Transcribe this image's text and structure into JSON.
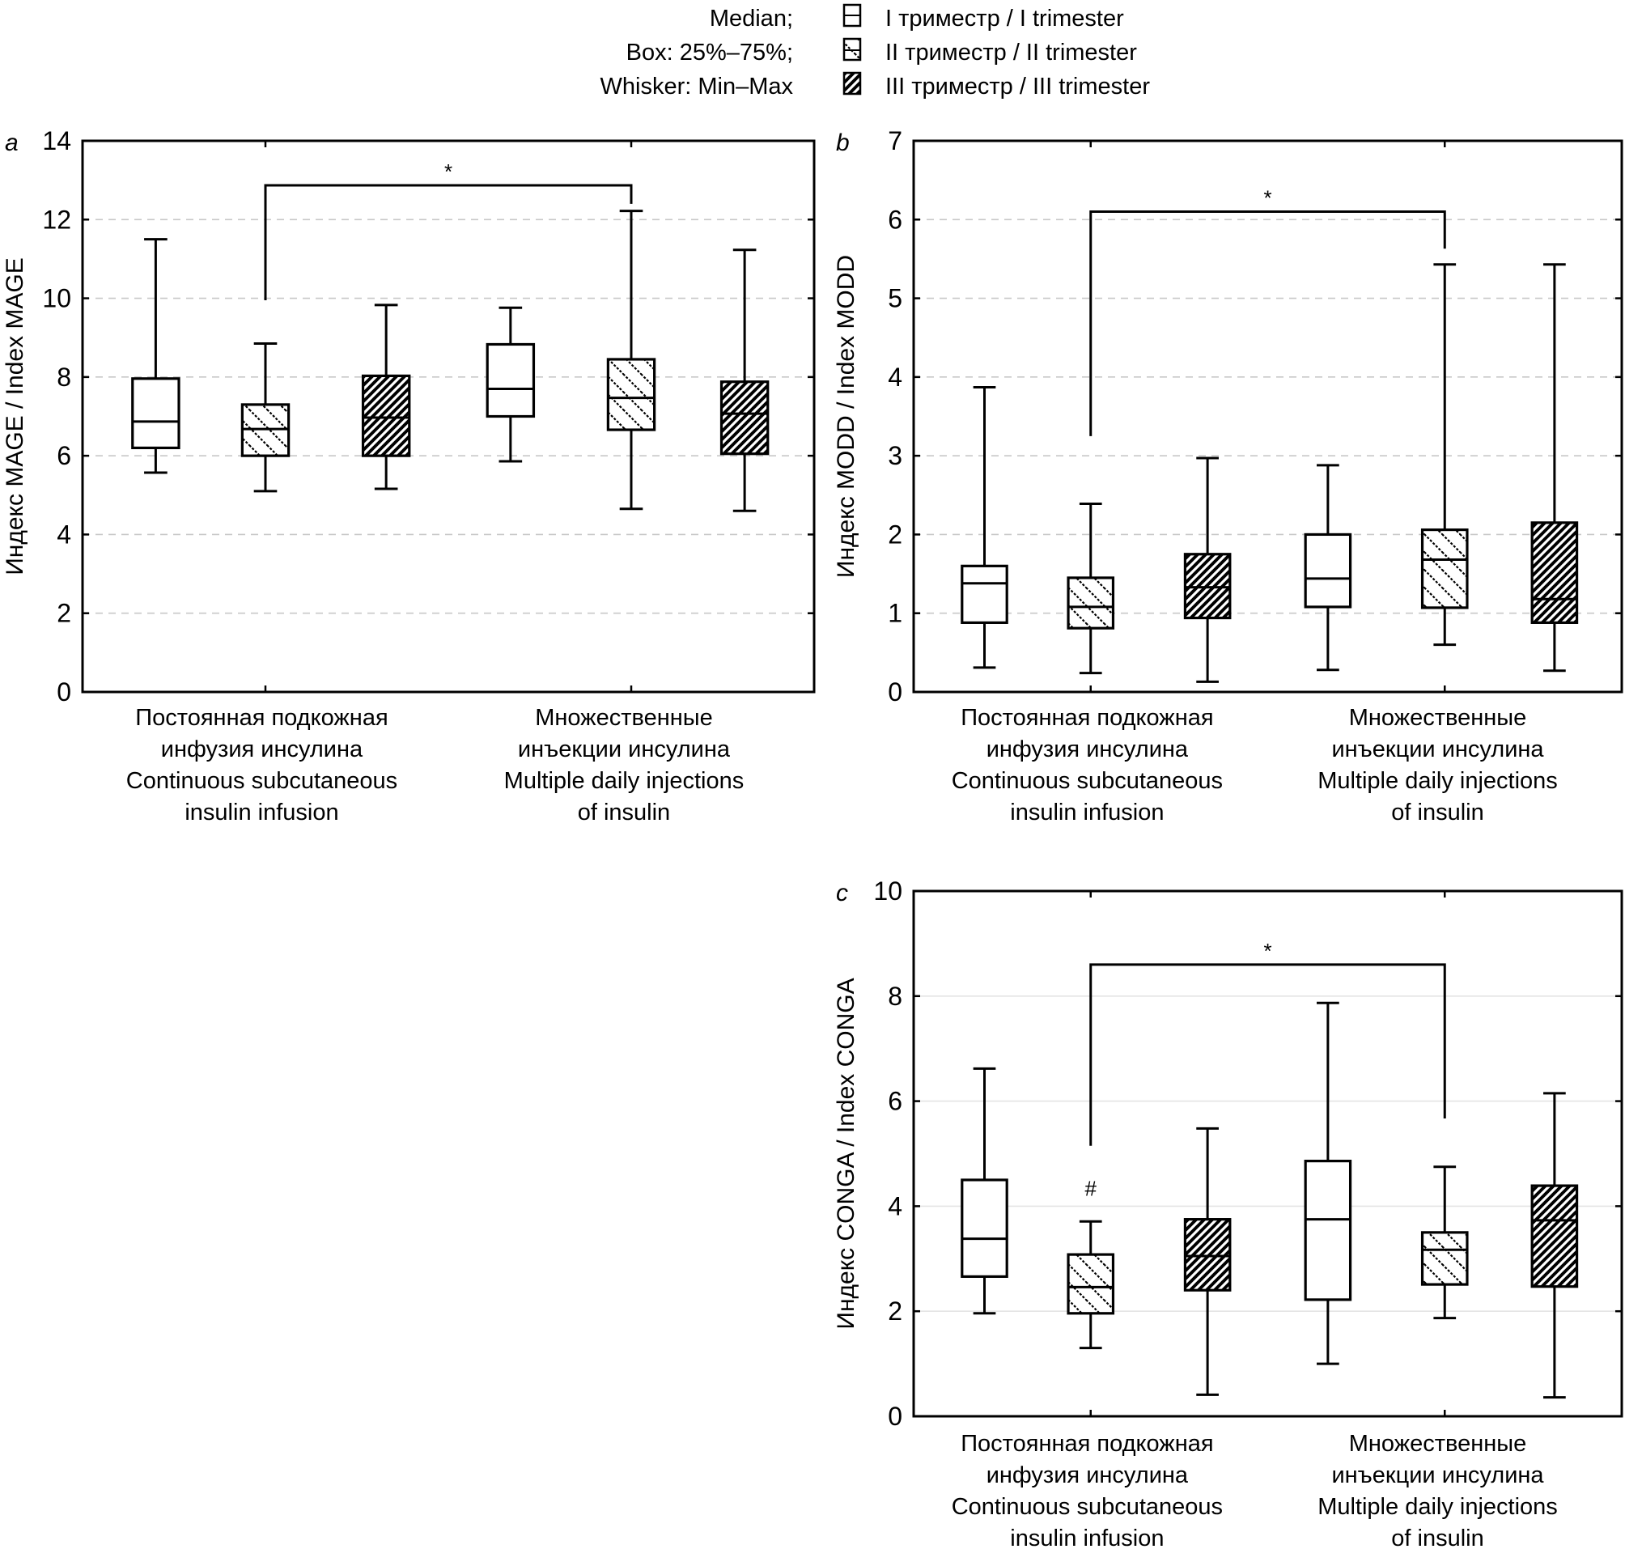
{
  "legend": {
    "stats_lines": [
      "Median;",
      "Box: 25%–75%;",
      "Whisker: Min–Max"
    ],
    "entries": [
      {
        "label": "I триместр / I trimester",
        "pattern": "none"
      },
      {
        "label": "II триместр / II trimester",
        "pattern": "sparse-hatch"
      },
      {
        "label": "III триместр / III trimester",
        "pattern": "dense-hatch"
      }
    ]
  },
  "groups": [
    [
      "Постоянная подкожная",
      "инфузия инсулина",
      "Continuous subcutaneous",
      "insulin infusion"
    ],
    [
      "Множественные",
      "инъекции инсулина",
      "Multiple daily injections",
      "of insulin"
    ]
  ],
  "chart_data": [
    {
      "type": "box",
      "panel": "a",
      "ylabel": "Индекс MAGE / Index MAGE",
      "ylim": [
        0,
        14
      ],
      "yticks": [
        0,
        2,
        4,
        6,
        8,
        10,
        12,
        14
      ],
      "grid": "dashed",
      "categories": [
        "Continuous subcutaneous insulin infusion",
        "Multiple daily injections of insulin"
      ],
      "series_order": [
        "I trimester",
        "II trimester",
        "III trimester"
      ],
      "boxes": [
        {
          "group": 0,
          "trimester": "I",
          "min": 5.57,
          "q1": 6.2,
          "median": 6.87,
          "q3": 7.96,
          "max": 11.5
        },
        {
          "group": 0,
          "trimester": "II",
          "min": 5.1,
          "q1": 6.0,
          "median": 6.68,
          "q3": 7.3,
          "max": 8.85
        },
        {
          "group": 0,
          "trimester": "III",
          "min": 5.16,
          "q1": 6.0,
          "median": 6.97,
          "q3": 8.03,
          "max": 9.83
        },
        {
          "group": 1,
          "trimester": "I",
          "min": 5.86,
          "q1": 7.0,
          "median": 7.7,
          "q3": 8.83,
          "max": 9.76
        },
        {
          "group": 1,
          "trimester": "II",
          "min": 4.65,
          "q1": 6.66,
          "median": 7.47,
          "q3": 8.45,
          "max": 12.22
        },
        {
          "group": 1,
          "trimester": "III",
          "min": 4.6,
          "q1": 6.05,
          "median": 7.07,
          "q3": 7.88,
          "max": 11.23
        }
      ],
      "significance": [
        {
          "from_box": 1,
          "to_box": 4,
          "left_y": 9.95,
          "top_y": 12.87,
          "right_y": 12.4,
          "mark": "*"
        }
      ],
      "annotations": []
    },
    {
      "type": "box",
      "panel": "b",
      "ylabel": "Индекс MODD / Index  MODD",
      "ylim": [
        0,
        7
      ],
      "yticks": [
        0,
        1,
        2,
        3,
        4,
        5,
        6,
        7
      ],
      "grid": "dashed",
      "categories": [
        "Continuous subcutaneous insulin infusion",
        "Multiple daily injections of insulin"
      ],
      "series_order": [
        "I trimester",
        "II trimester",
        "III trimester"
      ],
      "boxes": [
        {
          "group": 0,
          "trimester": "I",
          "min": 0.31,
          "q1": 0.88,
          "median": 1.38,
          "q3": 1.6,
          "max": 3.87
        },
        {
          "group": 0,
          "trimester": "II",
          "min": 0.24,
          "q1": 0.81,
          "median": 1.08,
          "q3": 1.45,
          "max": 2.39
        },
        {
          "group": 0,
          "trimester": "III",
          "min": 0.13,
          "q1": 0.94,
          "median": 1.33,
          "q3": 1.75,
          "max": 2.97
        },
        {
          "group": 1,
          "trimester": "I",
          "min": 0.28,
          "q1": 1.08,
          "median": 1.44,
          "q3": 2.0,
          "max": 2.88
        },
        {
          "group": 1,
          "trimester": "II",
          "min": 0.6,
          "q1": 1.07,
          "median": 1.68,
          "q3": 2.06,
          "max": 5.43
        },
        {
          "group": 1,
          "trimester": "III",
          "min": 0.27,
          "q1": 0.88,
          "median": 1.18,
          "q3": 2.15,
          "max": 5.43
        }
      ],
      "significance": [
        {
          "from_box": 1,
          "to_box": 4,
          "left_y": 3.25,
          "top_y": 6.1,
          "right_y": 5.63,
          "mark": "*"
        }
      ],
      "annotations": []
    },
    {
      "type": "box",
      "panel": "c",
      "ylabel": "Индекс CONGA / Index CONGA",
      "ylim": [
        0,
        10
      ],
      "yticks": [
        0,
        2,
        4,
        6,
        8,
        10
      ],
      "grid": "solid",
      "categories": [
        "Continuous subcutaneous insulin infusion",
        "Multiple daily injections of insulin"
      ],
      "series_order": [
        "I trimester",
        "II trimester",
        "III trimester"
      ],
      "boxes": [
        {
          "group": 0,
          "trimester": "I",
          "min": 1.96,
          "q1": 2.66,
          "median": 3.38,
          "q3": 4.5,
          "max": 6.62
        },
        {
          "group": 0,
          "trimester": "II",
          "min": 1.3,
          "q1": 1.96,
          "median": 2.46,
          "q3": 3.08,
          "max": 3.71
        },
        {
          "group": 0,
          "trimester": "III",
          "min": 0.41,
          "q1": 2.4,
          "median": 3.05,
          "q3": 3.75,
          "max": 5.48
        },
        {
          "group": 1,
          "trimester": "I",
          "min": 1.0,
          "q1": 2.22,
          "median": 3.75,
          "q3": 4.86,
          "max": 7.87
        },
        {
          "group": 1,
          "trimester": "II",
          "min": 1.87,
          "q1": 2.51,
          "median": 3.17,
          "q3": 3.5,
          "max": 4.75
        },
        {
          "group": 1,
          "trimester": "III",
          "min": 0.36,
          "q1": 2.47,
          "median": 3.73,
          "q3": 4.39,
          "max": 6.15
        }
      ],
      "significance": [
        {
          "from_box": 1,
          "to_box": 4,
          "left_y": 5.15,
          "top_y": 8.6,
          "right_y": 5.67,
          "mark": "*"
        }
      ],
      "annotations": [
        {
          "box": 1,
          "y": 4.2,
          "text": "#"
        }
      ]
    }
  ]
}
